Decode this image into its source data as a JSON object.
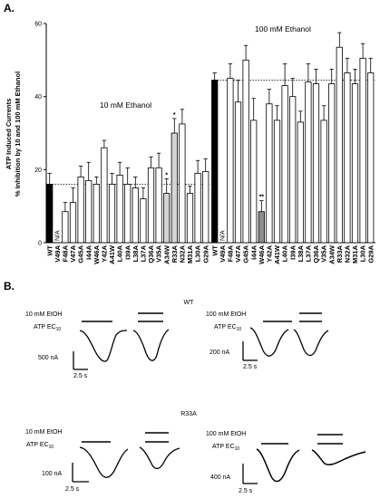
{
  "panel_labels": {
    "a": "A.",
    "b": "B."
  },
  "chart_data": {
    "type": "bar",
    "ylabel_line1": "ATP Induced Currents",
    "ylabel_line2": "% Inhibition by 10 and 100 mM Ethanol",
    "ylim": [
      0,
      60
    ],
    "yticks": [
      "0",
      "20",
      "40",
      "60"
    ],
    "grid": false,
    "groups": [
      {
        "name": "10 mM Ethanol",
        "categories": [
          "WT",
          "V49A",
          "F48A",
          "V47A",
          "G45A",
          "I44A",
          "W46A",
          "Y42A",
          "A41W",
          "L40A",
          "I39A",
          "L38A",
          "L37A",
          "Q36A",
          "V35A",
          "A34W",
          "R33A",
          "N32A",
          "M31A",
          "L30A",
          "G29A"
        ],
        "values": [
          16,
          null,
          8.5,
          11,
          18,
          17,
          16,
          26,
          16,
          18.5,
          16,
          15,
          12,
          20.5,
          20.5,
          13.5,
          30,
          32.5,
          13.5,
          19,
          19.5
        ],
        "errors": [
          3,
          null,
          2.5,
          4,
          3,
          5,
          2,
          2,
          3,
          3.5,
          4.5,
          3,
          3,
          3,
          4,
          4,
          4,
          4,
          2,
          3.5,
          3.5
        ],
        "baseline": 16,
        "markers": [
          null,
          "N/A",
          null,
          null,
          null,
          null,
          null,
          null,
          null,
          null,
          null,
          null,
          null,
          null,
          null,
          "*",
          "*",
          null,
          null,
          null,
          null
        ],
        "fills": [
          "#000000",
          "#ffffff",
          "#ffffff",
          "#ffffff",
          "#ffffff",
          "#ffffff",
          "#ffffff",
          "#ffffff",
          "#ffffff",
          "#ffffff",
          "#ffffff",
          "#ffffff",
          "#ffffff",
          "#ffffff",
          "#ffffff",
          "#d4d4d4",
          "#d4d4d4",
          "#ffffff",
          "#ffffff",
          "#ffffff",
          "#ffffff"
        ]
      },
      {
        "name": "100 mM Ethanol",
        "categories": [
          "WT",
          "V49A",
          "F48A",
          "V47A",
          "G45A",
          "I44A",
          "W46A",
          "Y42A",
          "A41W",
          "L40A",
          "I39A",
          "L38A",
          "L37A",
          "Q36A",
          "V35A",
          "A34W",
          "R33A",
          "N32A",
          "M31A",
          "L30A",
          "G29A"
        ],
        "values": [
          44.5,
          null,
          45,
          38.5,
          50,
          33.5,
          8.5,
          38,
          33.5,
          43,
          40,
          33,
          44,
          43.5,
          33.5,
          43.5,
          53.5,
          46.5,
          43.5,
          50.5,
          46.5
        ],
        "errors": [
          2,
          null,
          4,
          6,
          4,
          6,
          3,
          4,
          4,
          6,
          5,
          3,
          5,
          4,
          4,
          4,
          4,
          4,
          4,
          4,
          4
        ],
        "baseline": 44.5,
        "markers": [
          null,
          "N/A",
          null,
          null,
          null,
          null,
          "**",
          null,
          null,
          null,
          null,
          null,
          null,
          null,
          null,
          null,
          null,
          null,
          null,
          null,
          null
        ],
        "fills": [
          "#000000",
          "#ffffff",
          "#ffffff",
          "#ffffff",
          "#ffffff",
          "#ffffff",
          "#8c8c8c",
          "#ffffff",
          "#ffffff",
          "#ffffff",
          "#ffffff",
          "#ffffff",
          "#ffffff",
          "#ffffff",
          "#ffffff",
          "#ffffff",
          "#ffffff",
          "#ffffff",
          "#ffffff",
          "#ffffff",
          "#ffffff"
        ]
      }
    ]
  },
  "traces": {
    "wt_title": "WT",
    "mut_title": "R33A",
    "ethanol_10": "10 mM EtOH",
    "ethanol_100": "100 mM EtOH",
    "atp_prefix": "ATP EC",
    "atp_subscript": "10",
    "scalebars": {
      "wt_10_current": "500 nA",
      "wt_100_current": "200 nA",
      "mut_10_current": "100 nA",
      "mut_100_current": "400 nA",
      "time": "2.5 s"
    }
  }
}
